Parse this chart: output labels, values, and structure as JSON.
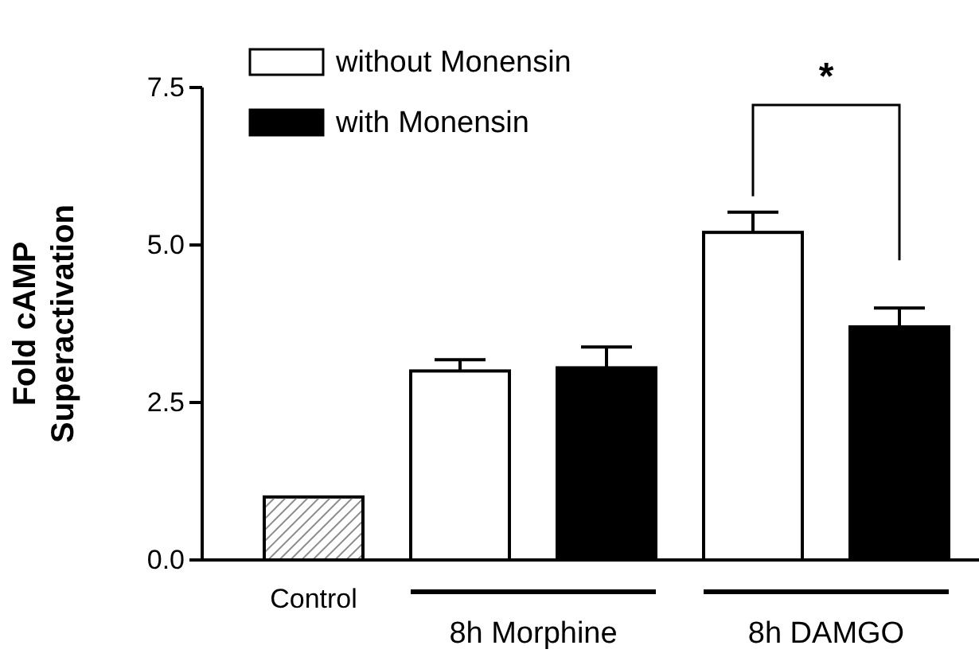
{
  "chart_data": {
    "type": "bar",
    "ylabel": "Fold cAMP\nSuperactivation",
    "categories": [
      "Control",
      "8h Morphine",
      "8h DAMGO"
    ],
    "series": [
      {
        "color": "#ffffff",
        "values": [
          1.0,
          null,
          null
        ],
        "errors": [
          null,
          null,
          null
        ]
      },
      {
        "name": "without Monensin",
        "color": "#ffffff",
        "values": [
          null,
          3.0,
          5.2
        ],
        "errors": [
          null,
          0.18,
          0.32
        ]
      },
      {
        "name": "with Monensin",
        "color": "#000000",
        "values": [
          null,
          3.05,
          3.7
        ],
        "errors": [
          null,
          0.33,
          0.3
        ]
      }
    ],
    "ylim": [
      0,
      7.5
    ],
    "yticks": [
      {
        "value": 0,
        "label": "0.0"
      },
      {
        "value": 2.5,
        "label": "2.5"
      },
      {
        "value": 5,
        "label": "5.0"
      },
      {
        "value": 7.5,
        "label": "7.5"
      }
    ],
    "grid": false,
    "legend": "top left",
    "annotations": [
      "*"
    ]
  }
}
